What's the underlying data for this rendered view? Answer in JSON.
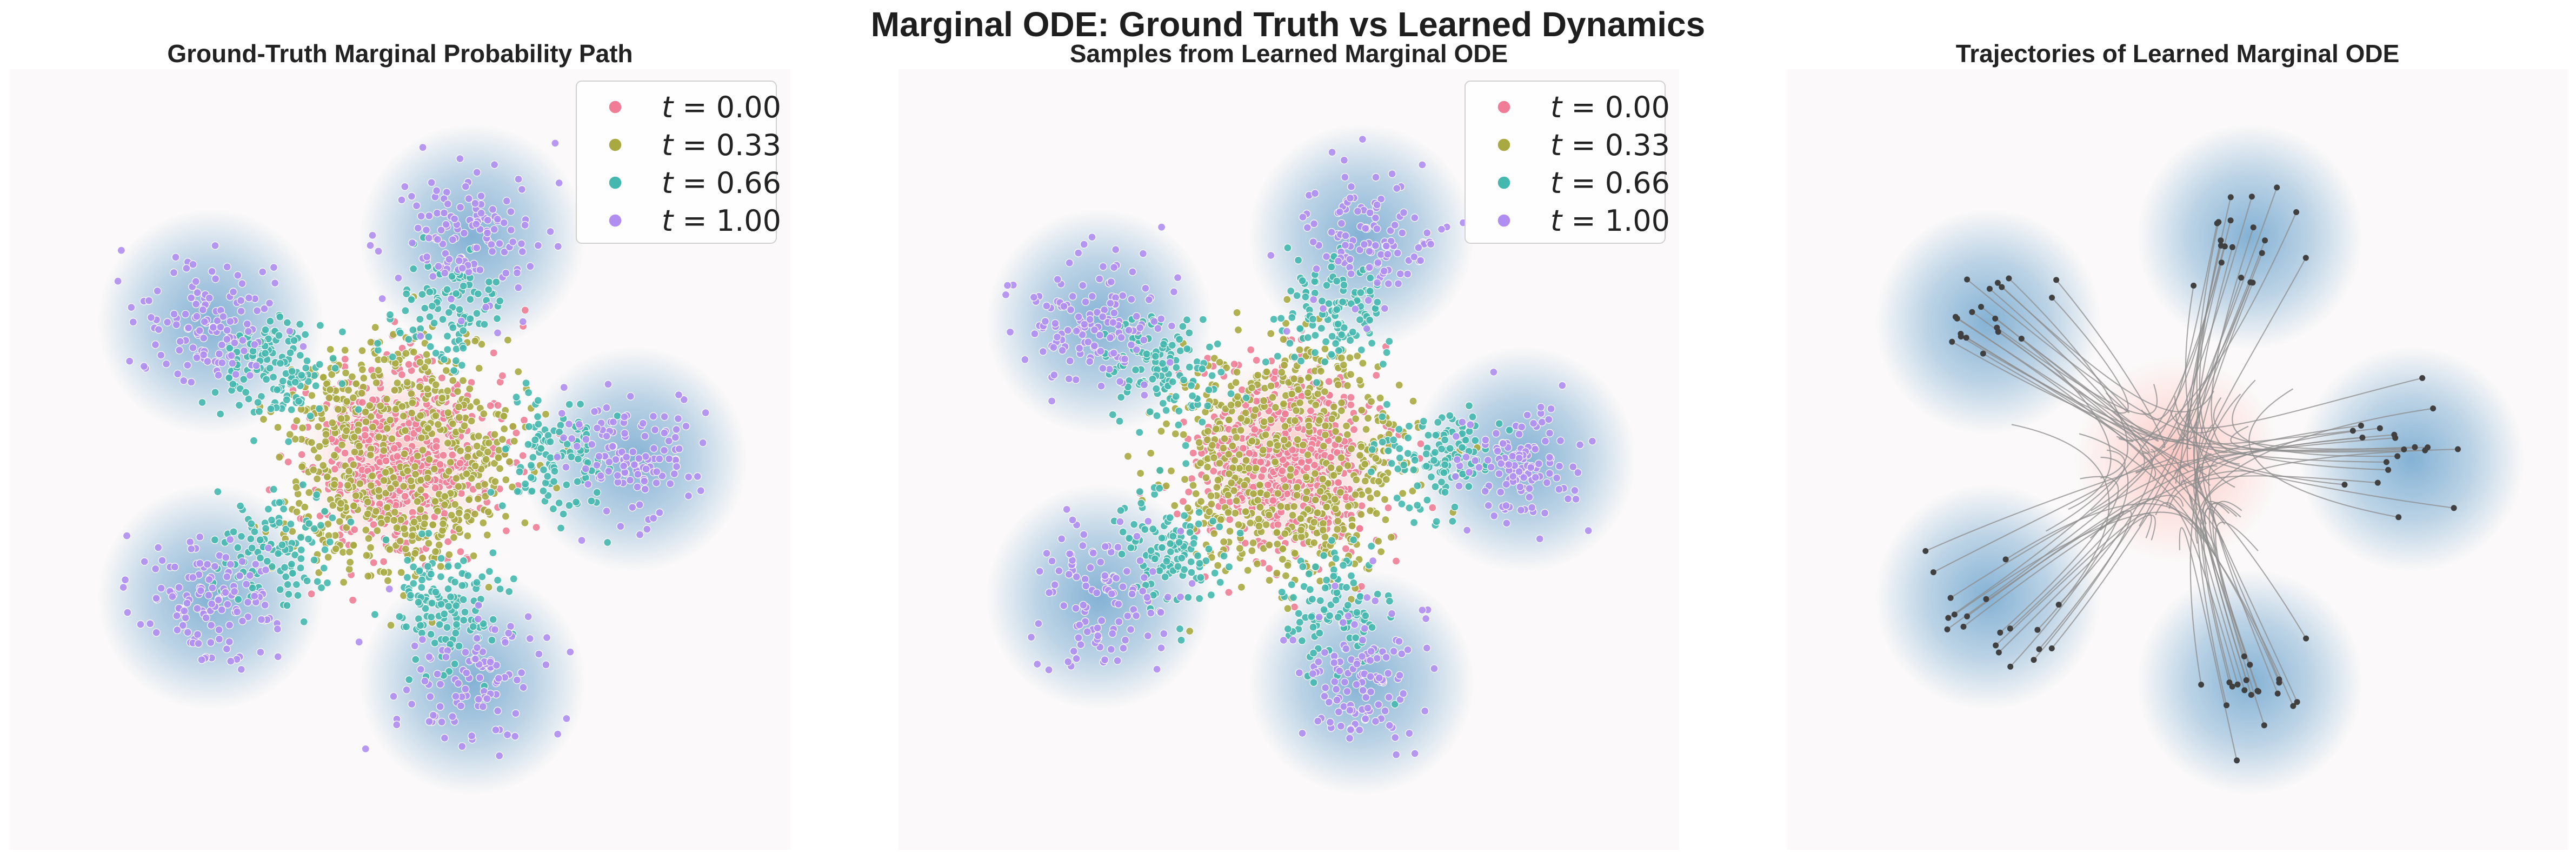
{
  "figure": {
    "title": "Marginal ODE: Ground Truth vs Learned Dynamics"
  },
  "colors": {
    "background": "#fbf9f9",
    "t0": "#f07d95",
    "t033": "#a8aa41",
    "t066": "#44b8ae",
    "t100": "#b08ef1",
    "source_glow": "#ffb6b0",
    "target_glow": "#6fa5ce",
    "trajectory_line": "#8c8c8c",
    "trajectory_end": "#404040"
  },
  "chart_data": [
    {
      "type": "scatter",
      "title": "Ground-Truth Marginal Probability Path",
      "xlabel": "",
      "ylabel": "",
      "xlim": [
        -5,
        5
      ],
      "ylim": [
        -5,
        5
      ],
      "grid": false,
      "legend": {
        "placement": "top-right",
        "entries": [
          "t = 0.00",
          "t = 0.33",
          "t = 0.66",
          "t = 1.00"
        ]
      },
      "source": {
        "center": [
          0,
          0
        ],
        "std": 0.6
      },
      "target_modes": {
        "count": 5,
        "radius": 3.0,
        "angles_deg": [
          0,
          72,
          144,
          216,
          288
        ],
        "std": 0.45
      },
      "series": [
        {
          "name": "t = 0.00",
          "points_per_series": 600,
          "mean_interpolation": 0.0
        },
        {
          "name": "t = 0.33",
          "points_per_series": 600,
          "mean_interpolation": 0.33
        },
        {
          "name": "t = 0.66",
          "points_per_series": 600,
          "mean_interpolation": 0.66
        },
        {
          "name": "t = 1.00",
          "points_per_series": 600,
          "mean_interpolation": 1.0
        }
      ]
    },
    {
      "type": "scatter",
      "title": "Samples from Learned Marginal ODE",
      "xlabel": "",
      "ylabel": "",
      "xlim": [
        -5,
        5
      ],
      "ylim": [
        -5,
        5
      ],
      "grid": false,
      "legend": {
        "placement": "top-right",
        "entries": [
          "t = 0.00",
          "t = 0.33",
          "t = 0.66",
          "t = 1.00"
        ]
      },
      "source": {
        "center": [
          0,
          0
        ],
        "std": 0.6
      },
      "target_modes": {
        "count": 5,
        "radius": 3.0,
        "angles_deg": [
          0,
          72,
          144,
          216,
          288
        ],
        "std": 0.45
      },
      "series": [
        {
          "name": "t = 0.00",
          "points_per_series": 600,
          "mean_interpolation": 0.0
        },
        {
          "name": "t = 0.33",
          "points_per_series": 600,
          "mean_interpolation": 0.33
        },
        {
          "name": "t = 0.66",
          "points_per_series": 600,
          "mean_interpolation": 0.66
        },
        {
          "name": "t = 1.00",
          "points_per_series": 600,
          "mean_interpolation": 1.0
        }
      ]
    },
    {
      "type": "line",
      "title": "Trajectories of Learned Marginal ODE",
      "xlabel": "",
      "ylabel": "",
      "xlim": [
        -5,
        5
      ],
      "ylim": [
        -5,
        5
      ],
      "grid": false,
      "source": {
        "center": [
          0,
          0
        ],
        "std": 0.6
      },
      "target_modes": {
        "count": 5,
        "radius": 3.0,
        "angles_deg": [
          0,
          72,
          144,
          216,
          288
        ],
        "std": 0.45
      },
      "trajectories": {
        "count": 100,
        "start": "source",
        "end": "target_modes"
      }
    }
  ]
}
